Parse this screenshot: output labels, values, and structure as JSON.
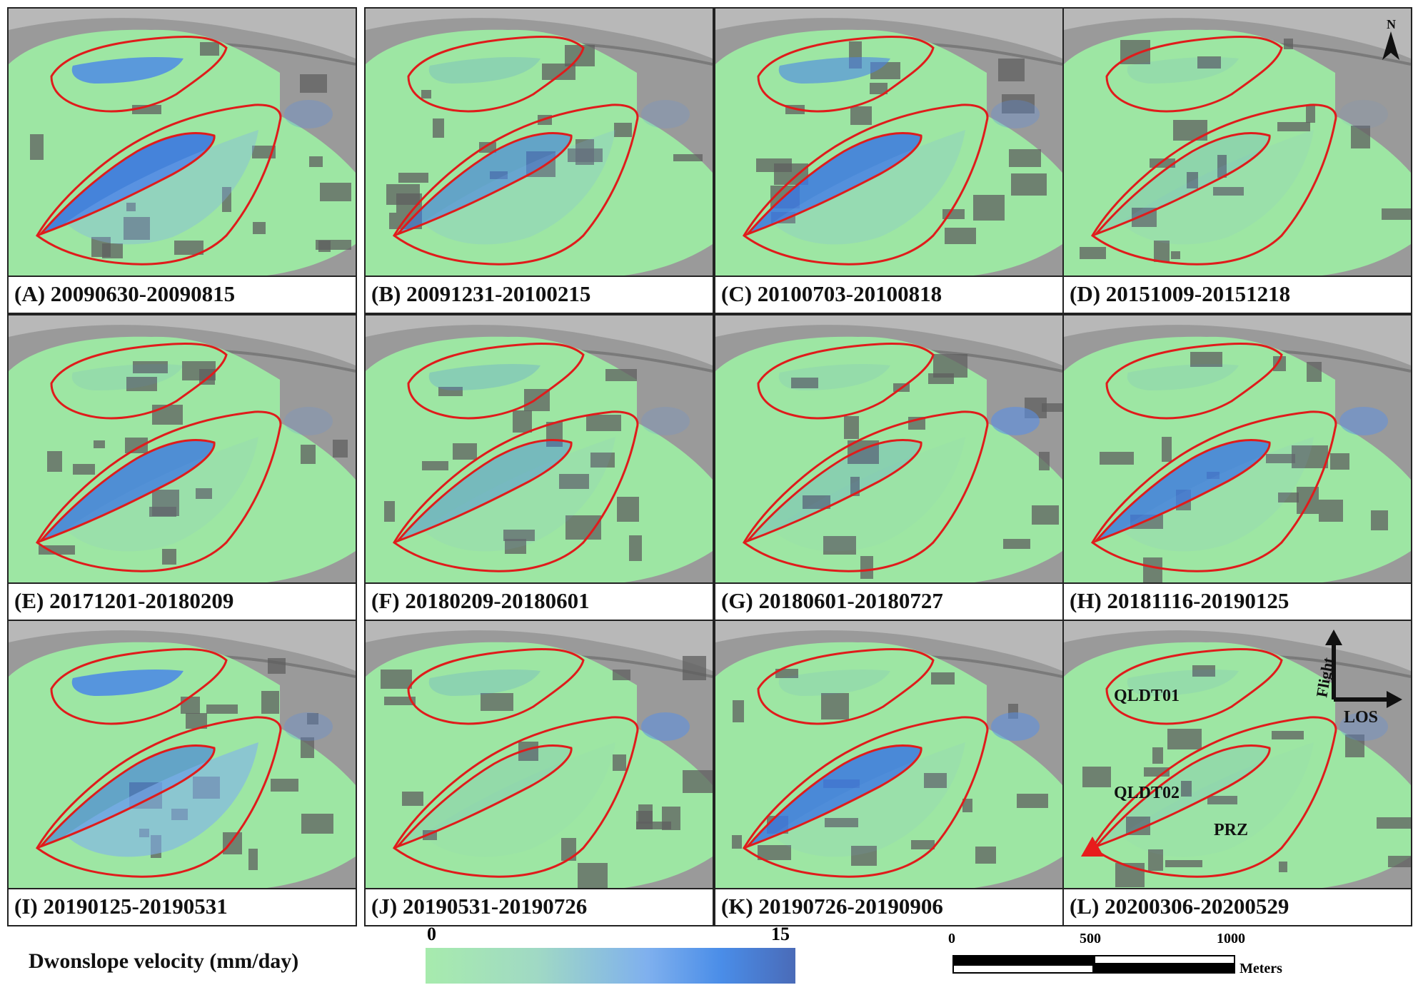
{
  "panels": [
    {
      "caption": "(A) 20090630-20090815"
    },
    {
      "caption": "(B) 20091231-20100215"
    },
    {
      "caption": "(C) 20100703-20100818"
    },
    {
      "caption": "(D) 20151009-20151218"
    },
    {
      "caption": "(E) 20171201-20180209"
    },
    {
      "caption": "(F) 20180209-20180601"
    },
    {
      "caption": "(G) 20180601-20180727"
    },
    {
      "caption": "(H) 20181116-20190125"
    },
    {
      "caption": "(I) 20190125-20190531"
    },
    {
      "caption": "(J) 20190531-20190726"
    },
    {
      "caption": "(K) 20190726-20190906"
    },
    {
      "caption": "(L) 20200306-20200529"
    }
  ],
  "map_labels": {
    "north": "N",
    "upper_zone": "QLDT01",
    "lower_zone": "QLDT02",
    "right_zone": "PRZ",
    "flight": "Flight",
    "los": "LOS"
  },
  "legend": {
    "title": "Dwonslope velocity (mm/day)",
    "min": "0",
    "max": "15",
    "colors": [
      "#a7ebad",
      "#a0d9c4",
      "#7fb0ee",
      "#4a8de8",
      "#4a6bb8"
    ]
  },
  "scale": {
    "ticks": [
      "0",
      "500",
      "1000"
    ],
    "unit": "Meters"
  },
  "colors": {
    "boundary": "#e01b1b",
    "green": "#9de6a3",
    "hillshade": "#8c8c8c",
    "marker": "#e81c1c"
  }
}
